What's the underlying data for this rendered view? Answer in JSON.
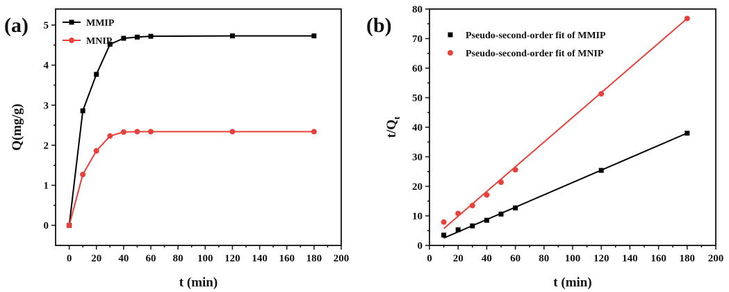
{
  "chart_data": [
    {
      "panel_label": "(a)",
      "type": "line",
      "xlabel": "t (min)",
      "ylabel": "Q(mg/g)",
      "xlim": [
        -10,
        200
      ],
      "ylim": [
        -0.5,
        5.4
      ],
      "xticks": [
        0,
        20,
        40,
        60,
        80,
        100,
        120,
        140,
        160,
        180,
        200
      ],
      "yticks": [
        0,
        1,
        2,
        3,
        4,
        5
      ],
      "grid": false,
      "legend_position": "top-left",
      "series": [
        {
          "name": "MMIP",
          "color": "#000000",
          "marker": "square",
          "x": [
            0,
            10,
            20,
            30,
            40,
            50,
            60,
            120,
            180
          ],
          "y": [
            0,
            2.86,
            3.77,
            4.52,
            4.67,
            4.7,
            4.72,
            4.73,
            4.73
          ]
        },
        {
          "name": "MNIP",
          "color": "#e8403a",
          "marker": "circle",
          "x": [
            0,
            10,
            20,
            30,
            40,
            50,
            60,
            120,
            180
          ],
          "y": [
            0,
            1.27,
            1.86,
            2.23,
            2.33,
            2.34,
            2.34,
            2.34,
            2.34
          ]
        }
      ]
    },
    {
      "panel_label": "(b)",
      "type": "scatter",
      "xlabel": "t (min)",
      "ylabel": "t/Q",
      "ylabel_subscript": "t",
      "xlim": [
        0,
        200
      ],
      "ylim": [
        0,
        80
      ],
      "xticks": [
        0,
        20,
        40,
        60,
        80,
        100,
        120,
        140,
        160,
        180,
        200
      ],
      "yticks": [
        0,
        10,
        20,
        30,
        40,
        50,
        60,
        70,
        80
      ],
      "grid": false,
      "legend_position": "top-left",
      "series": [
        {
          "name": "Pseudo-second-order fit of MMIP",
          "color": "#000000",
          "marker": "square",
          "x": [
            10,
            20,
            30,
            40,
            50,
            60,
            120,
            180
          ],
          "y": [
            3.5,
            5.3,
            6.6,
            8.5,
            10.6,
            12.7,
            25.4,
            38.0
          ],
          "fit_line": {
            "x": [
              10,
              180
            ],
            "y": [
              2.5,
              38.0
            ]
          }
        },
        {
          "name": "Pseudo-second-order fit of MNIP",
          "color": "#e8403a",
          "marker": "circle",
          "x": [
            10,
            20,
            30,
            40,
            50,
            60,
            120,
            180
          ],
          "y": [
            7.9,
            10.8,
            13.5,
            17.1,
            21.4,
            25.6,
            51.3,
            76.8
          ],
          "fit_line": {
            "x": [
              10,
              180
            ],
            "y": [
              5.7,
              76.8
            ]
          }
        }
      ]
    }
  ]
}
